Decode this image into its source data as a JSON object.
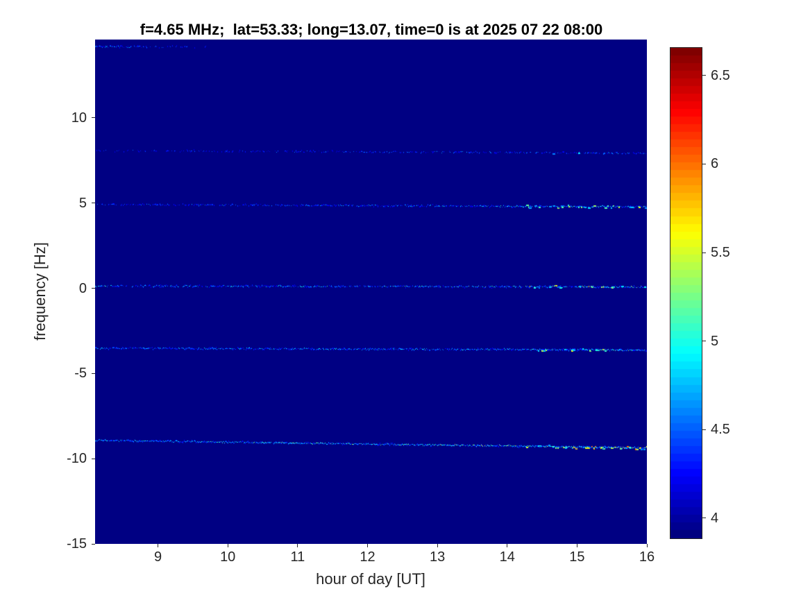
{
  "page": {
    "background_color": "#ffffff",
    "text_color": "#262626",
    "title_color": "#000000"
  },
  "chart_data": {
    "type": "heatmap",
    "title": "f=4.65 MHz;  lat=53.33; long=13.07, time=0 is at 2025 07 22 08:00",
    "xlabel": "hour of day [UT]",
    "ylabel": "frequency [Hz]",
    "xlim": [
      8.1,
      16
    ],
    "ylim": [
      -15,
      14.6
    ],
    "xticks": [
      9,
      10,
      11,
      12,
      13,
      14,
      15,
      16
    ],
    "yticks": [
      10,
      5,
      0,
      -5,
      -10,
      -15
    ],
    "grid": false,
    "legend": "none",
    "background_value": 3.9,
    "background_color": "#000083",
    "colorbar": {
      "position": "right",
      "colormap": "jet",
      "min": 3.89,
      "max": 6.66,
      "ticks": [
        6.5,
        6,
        5.5,
        5,
        4.5,
        4
      ],
      "steps": 64
    },
    "streaks": [
      {
        "name": "carrier-top-edge",
        "freq": [
          14.2,
          14.2
        ],
        "x": [
          8.1,
          9.7
        ],
        "density": [
          0.95,
          0.05
        ],
        "vbase": 4.15,
        "vmax": [
          5.0,
          4.4
        ],
        "blob": 0,
        "left_boost": 0.3
      },
      {
        "name": "carrier-8Hz",
        "freq": [
          8.1,
          7.95
        ],
        "x": [
          8.1,
          16
        ],
        "density": [
          0.32,
          0.55
        ],
        "vbase": 4.08,
        "vmax": [
          4.5,
          4.9
        ],
        "blob": 0.06,
        "left_boost": 0
      },
      {
        "name": "carrier-5Hz",
        "freq": [
          4.95,
          4.8
        ],
        "x": [
          8.1,
          16
        ],
        "density": [
          0.45,
          0.85
        ],
        "vbase": 4.15,
        "vmax": [
          4.6,
          5.3
        ],
        "blob": 0.16,
        "left_boost": 0.2
      },
      {
        "name": "carrier-0Hz",
        "freq": [
          0.15,
          0.1
        ],
        "x": [
          8.1,
          16
        ],
        "density": [
          0.62,
          0.85
        ],
        "vbase": 4.15,
        "vmax": [
          4.9,
          5.4
        ],
        "blob": 0.15,
        "left_boost": 0.4
      },
      {
        "name": "carrier-neg3.5Hz",
        "freq": [
          -3.5,
          -3.6
        ],
        "x": [
          8.1,
          16
        ],
        "density": [
          0.8,
          0.92
        ],
        "vbase": 4.2,
        "vmax": [
          4.8,
          5.3
        ],
        "blob": 0.12,
        "left_boost": 0.3
      },
      {
        "name": "carrier-neg9Hz",
        "freq": [
          -8.9,
          -9.35
        ],
        "x": [
          8.1,
          16
        ],
        "density": [
          0.95,
          1.0
        ],
        "vbase": 4.25,
        "vmax": [
          5.0,
          5.8
        ],
        "blob": 0.2,
        "left_boost": 0.4
      }
    ]
  }
}
